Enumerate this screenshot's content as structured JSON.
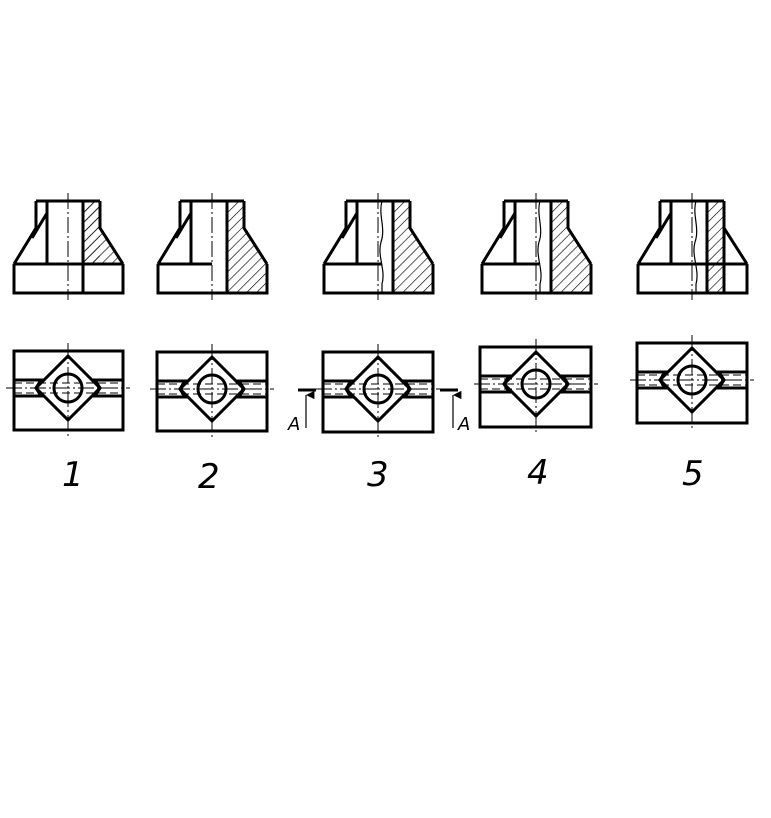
{
  "figure": {
    "view_labels": [
      "1",
      "2",
      "3",
      "4",
      "5"
    ],
    "section_marker": "A"
  },
  "colors": {
    "ink": "#000000",
    "background": "#ffffff"
  }
}
